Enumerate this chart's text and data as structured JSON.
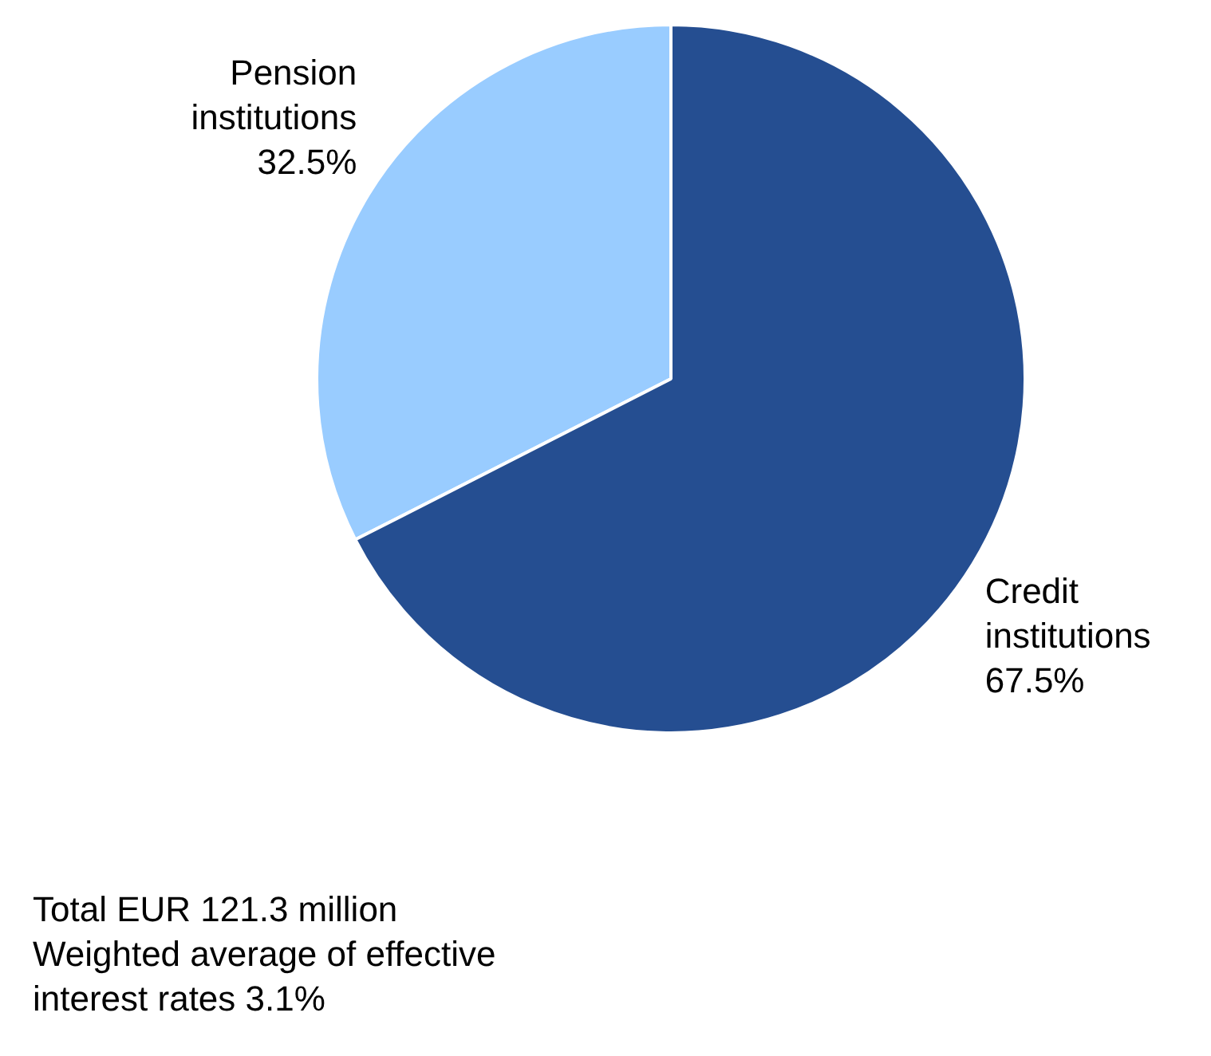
{
  "chart_data": {
    "type": "pie",
    "categories": [
      "Pension institutions",
      "Credit institutions"
    ],
    "values": [
      32.5,
      67.5
    ],
    "colors": [
      "#99ccff",
      "#254e91"
    ],
    "value_labels": [
      "32.5%",
      "67.5%"
    ],
    "annotations": [
      "Total EUR 121.3 million",
      "Weighted average of effective interest rates 3.1%"
    ]
  }
}
